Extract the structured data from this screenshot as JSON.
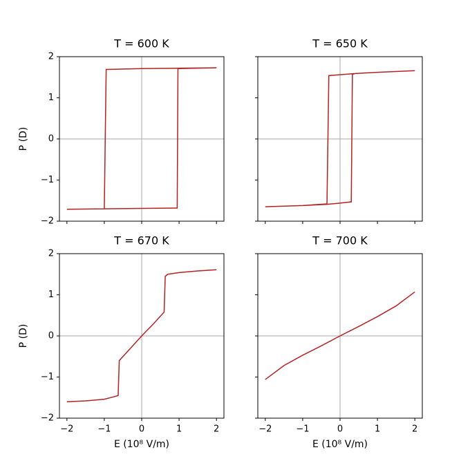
{
  "chart_data": [
    {
      "type": "line",
      "title": "T = 600 K",
      "ylabel": "P (D)",
      "color": "#b22222",
      "x": [
        -2,
        -1,
        0,
        0.95,
        0.97,
        1.5,
        2,
        1,
        0,
        -0.95,
        -1.0,
        -2
      ],
      "values": [
        -1.71,
        -1.7,
        -1.69,
        -1.68,
        1.71,
        1.72,
        1.73,
        1.72,
        1.71,
        1.69,
        -1.7,
        -1.71
      ],
      "xlim": [
        -2.2,
        2.2
      ],
      "ylim": [
        -2,
        2
      ],
      "xticks": [
        -2,
        -1,
        0,
        1,
        2
      ],
      "x_tick_labels": false,
      "yticks": [
        {
          "value": -2,
          "label": "−2"
        },
        {
          "value": -1,
          "label": "−1"
        },
        0,
        1,
        2
      ],
      "y_tick_labels": true,
      "zero_lines": true
    },
    {
      "type": "line",
      "title": "T = 650 K",
      "color": "#b22222",
      "x": [
        -2,
        -1,
        -0.35,
        0,
        0.3,
        0.33,
        0.4,
        1,
        2,
        1,
        0.4,
        0,
        -0.3,
        -0.35,
        -1,
        -2
      ],
      "values": [
        -1.65,
        -1.62,
        -1.59,
        -1.56,
        -1.53,
        1.57,
        1.59,
        1.62,
        1.66,
        1.62,
        1.59,
        1.56,
        1.54,
        -1.58,
        -1.62,
        -1.65
      ],
      "xlim": [
        -2.2,
        2.2
      ],
      "ylim": [
        -2,
        2
      ],
      "xticks": [
        -2,
        -1,
        0,
        1,
        2
      ],
      "x_tick_labels": false,
      "yticks": [
        -2,
        -1,
        0,
        1,
        2
      ],
      "y_tick_labels": false,
      "zero_lines": true
    },
    {
      "type": "line",
      "title": "T = 670 K",
      "ylabel": "P (D)",
      "xlabel": "E (10⁸ V/m)",
      "color": "#b22222",
      "x": [
        -2,
        -1.5,
        -1,
        -0.7,
        -0.63,
        -0.6,
        -0.3,
        0,
        0.3,
        0.6,
        0.63,
        0.7,
        1,
        1.5,
        2
      ],
      "values": [
        -1.6,
        -1.58,
        -1.54,
        -1.47,
        -1.45,
        -0.6,
        -0.3,
        0,
        0.28,
        0.58,
        1.45,
        1.5,
        1.54,
        1.58,
        1.61
      ],
      "xlim": [
        -2.2,
        2.2
      ],
      "ylim": [
        -2,
        2
      ],
      "xticks": [
        {
          "value": -2,
          "label": "−2"
        },
        {
          "value": -1,
          "label": "−1"
        },
        0,
        1,
        2
      ],
      "x_tick_labels": true,
      "yticks": [
        {
          "value": -2,
          "label": "−2"
        },
        {
          "value": -1,
          "label": "−1"
        },
        0,
        1,
        2
      ],
      "y_tick_labels": true,
      "zero_lines": true
    },
    {
      "type": "line",
      "title": "T = 700 K",
      "xlabel": "E (10⁸ V/m)",
      "color": "#b22222",
      "x": [
        -2,
        -1.5,
        -1,
        -0.5,
        0,
        0.5,
        1,
        1.5,
        2
      ],
      "values": [
        -1.06,
        -0.72,
        -0.47,
        -0.24,
        0,
        0.23,
        0.47,
        0.73,
        1.07
      ],
      "xlim": [
        -2.2,
        2.2
      ],
      "ylim": [
        -2,
        2
      ],
      "xticks": [
        {
          "value": -2,
          "label": "−2"
        },
        {
          "value": -1,
          "label": "−1"
        },
        0,
        1,
        2
      ],
      "x_tick_labels": true,
      "yticks": [
        -2,
        -1,
        0,
        1,
        2
      ],
      "y_tick_labels": false,
      "zero_lines": true
    }
  ]
}
